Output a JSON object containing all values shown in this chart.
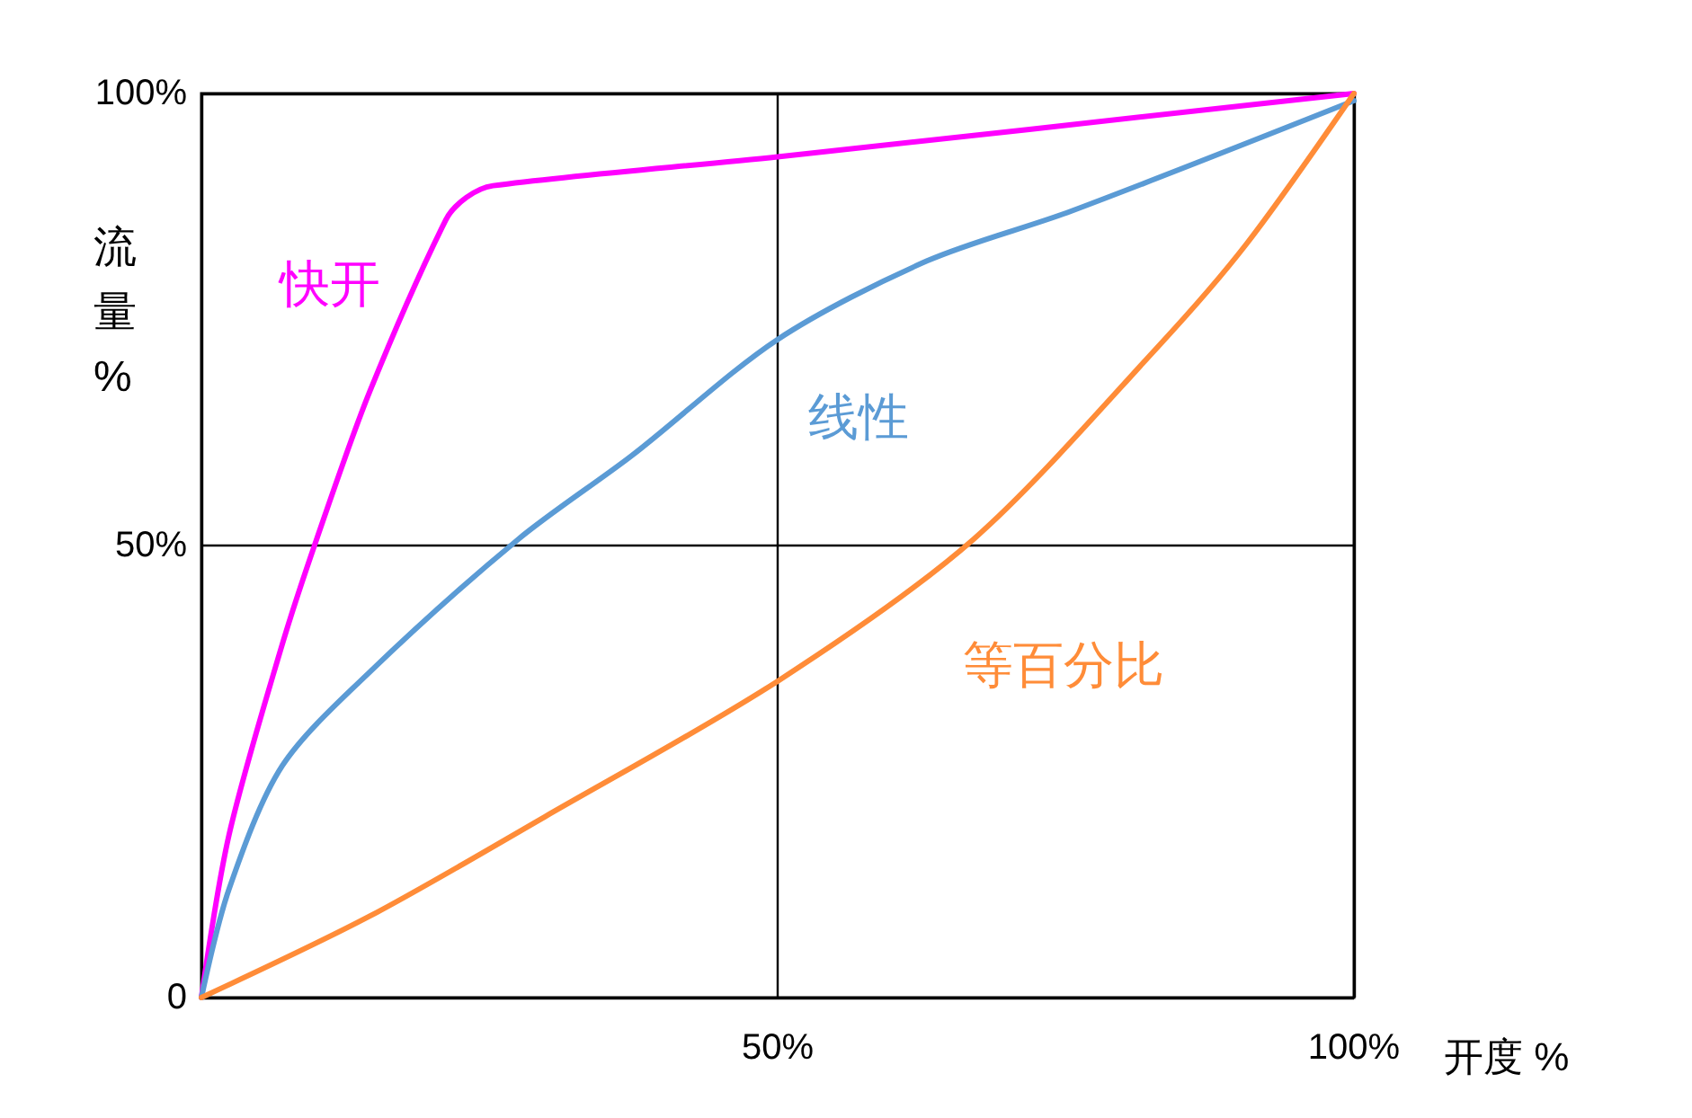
{
  "chart_data": {
    "type": "line",
    "xlabel": "开度 %",
    "ylabel": "流量%",
    "xlim": [
      0,
      100
    ],
    "ylim": [
      0,
      100
    ],
    "xticks": [
      {
        "value": 0,
        "label": null
      },
      {
        "value": 50,
        "label": "50%"
      },
      {
        "value": 100,
        "label": "100%"
      }
    ],
    "yticks": [
      {
        "value": 0,
        "label": "0"
      },
      {
        "value": 50,
        "label": "50%"
      },
      {
        "value": 100,
        "label": "100%"
      }
    ],
    "grid": true,
    "legend": false,
    "marker": "none",
    "line_style": "solid",
    "series": [
      {
        "name": "快开",
        "color": "#ff00ff",
        "x": [
          0,
          2.4,
          7,
          10,
          14.6,
          21.2,
          23,
          25.3,
          50,
          100
        ],
        "values": [
          0,
          18,
          39,
          50.7,
          67,
          86,
          88.5,
          89.8,
          93,
          100
        ]
      },
      {
        "name": "线性",
        "color": "#5b9bd5",
        "x": [
          0,
          2.4,
          7,
          14.6,
          27.5,
          37.4,
          50,
          63,
          75.5,
          100
        ],
        "values": [
          0,
          12,
          25.6,
          36,
          50.7,
          60,
          72.8,
          81.5,
          87,
          99.2
        ]
      },
      {
        "name": "等百分比",
        "color": "#ff8c38",
        "x": [
          0,
          14.6,
          29.8,
          50,
          67,
          83,
          90.7,
          100
        ],
        "values": [
          0,
          9,
          20,
          35,
          50.7,
          72,
          83.4,
          100
        ]
      }
    ]
  }
}
